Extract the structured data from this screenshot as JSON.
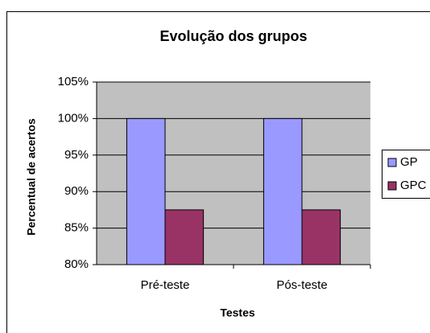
{
  "chart_data": {
    "type": "bar",
    "title": "Evolução dos grupos",
    "x_label": "Testes",
    "y_label": "Percentual de acertos",
    "categories": [
      "Pré-teste",
      "Pós-teste"
    ],
    "series": [
      {
        "name": "GP",
        "color": "#9999ff",
        "values": [
          100,
          100
        ]
      },
      {
        "name": "GPC",
        "color": "#993366",
        "values": [
          87.5,
          87.5
        ]
      }
    ],
    "ylim": [
      80,
      105
    ],
    "yticks": [
      {
        "value": 80,
        "label": "80%"
      },
      {
        "value": 85,
        "label": "85%"
      },
      {
        "value": 90,
        "label": "90%"
      },
      {
        "value": 95,
        "label": "95%"
      },
      {
        "value": 100,
        "label": "100%"
      },
      {
        "value": 105,
        "label": "105%"
      }
    ],
    "grid": true,
    "legend": "right"
  }
}
